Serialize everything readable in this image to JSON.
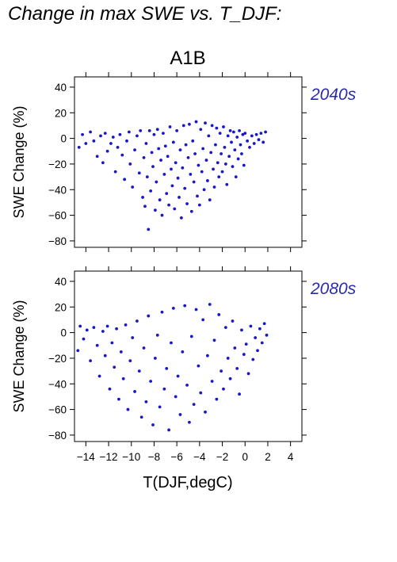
{
  "title": "Change in max SWE vs. T_DJF:",
  "colors": {
    "points": "#1818c8",
    "period_label": "#2a2ab0"
  },
  "chart_data": [
    {
      "type": "scatter",
      "title": "A1B",
      "period_label": "2040s",
      "ylabel": "SWE Change (%)",
      "xlabel": "",
      "xlim": [
        -15,
        5
      ],
      "ylim": [
        -85,
        48
      ],
      "xticks": [
        -14,
        -12,
        -10,
        -8,
        -6,
        -4,
        -2,
        0,
        2,
        4
      ],
      "yticks": [
        40,
        20,
        0,
        -20,
        -40,
        -60,
        -80
      ],
      "series": [
        {
          "values": [
            [
              -14.6,
              -7
            ],
            [
              -14.3,
              3
            ],
            [
              -14.0,
              -4
            ],
            [
              -13.6,
              5
            ],
            [
              -13.3,
              -2
            ],
            [
              -13.0,
              -14
            ],
            [
              -12.7,
              2
            ],
            [
              -12.5,
              -19
            ],
            [
              -12.3,
              4
            ],
            [
              -12.1,
              -10
            ],
            [
              -11.8,
              -4
            ],
            [
              -11.6,
              1
            ],
            [
              -11.4,
              -26
            ],
            [
              -11.2,
              -7
            ],
            [
              -11.0,
              3
            ],
            [
              -10.8,
              -13
            ],
            [
              -10.6,
              -32
            ],
            [
              -10.4,
              -2
            ],
            [
              -10.2,
              5
            ],
            [
              -10.1,
              -20
            ],
            [
              -9.9,
              -38
            ],
            [
              -9.7,
              -9
            ],
            [
              -9.5,
              2
            ],
            [
              -9.3,
              -27
            ],
            [
              -9.2,
              6
            ],
            [
              -9.0,
              -46
            ],
            [
              -8.9,
              -15
            ],
            [
              -8.8,
              -53
            ],
            [
              -8.7,
              -4
            ],
            [
              -8.6,
              -30
            ],
            [
              -8.5,
              -71
            ],
            [
              -8.4,
              6
            ],
            [
              -8.3,
              -41
            ],
            [
              -8.2,
              -11
            ],
            [
              -8.1,
              -22
            ],
            [
              -8.0,
              3
            ],
            [
              -7.9,
              -56
            ],
            [
              -7.8,
              -34
            ],
            [
              -7.7,
              7
            ],
            [
              -7.6,
              -8
            ],
            [
              -7.5,
              -48
            ],
            [
              -7.4,
              -17
            ],
            [
              -7.3,
              -60
            ],
            [
              -7.2,
              4
            ],
            [
              -7.1,
              -28
            ],
            [
              -7.0,
              -6
            ],
            [
              -6.9,
              -43
            ],
            [
              -6.8,
              -14
            ],
            [
              -6.7,
              -52
            ],
            [
              -6.6,
              9
            ],
            [
              -6.5,
              -24
            ],
            [
              -6.4,
              -37
            ],
            [
              -6.3,
              -3
            ],
            [
              -6.2,
              -55
            ],
            [
              -6.1,
              -19
            ],
            [
              -6.0,
              6
            ],
            [
              -5.9,
              -31
            ],
            [
              -5.8,
              -46
            ],
            [
              -5.7,
              -9
            ],
            [
              -5.6,
              -62
            ],
            [
              -5.5,
              -23
            ],
            [
              -5.4,
              10
            ],
            [
              -5.3,
              -39
            ],
            [
              -5.2,
              -5
            ],
            [
              -5.1,
              -51
            ],
            [
              -5.0,
              -15
            ],
            [
              -4.9,
              11
            ],
            [
              -4.8,
              -28
            ],
            [
              -4.7,
              -57
            ],
            [
              -4.6,
              -2
            ],
            [
              -4.5,
              -34
            ],
            [
              -4.4,
              -12
            ],
            [
              -4.3,
              13
            ],
            [
              -4.2,
              -45
            ],
            [
              -4.1,
              -21
            ],
            [
              -4.0,
              -52
            ],
            [
              -3.9,
              7
            ],
            [
              -3.8,
              -26
            ],
            [
              -3.7,
              -8
            ],
            [
              -3.6,
              -40
            ],
            [
              -3.5,
              12
            ],
            [
              -3.4,
              -17
            ],
            [
              -3.3,
              -33
            ],
            [
              -3.2,
              2
            ],
            [
              -3.1,
              -48
            ],
            [
              -3.0,
              -11
            ],
            [
              -2.9,
              10
            ],
            [
              -2.8,
              -24
            ],
            [
              -2.7,
              -38
            ],
            [
              -2.6,
              -5
            ],
            [
              -2.5,
              8
            ],
            [
              -2.4,
              -19
            ],
            [
              -2.3,
              -30
            ],
            [
              -2.2,
              4
            ],
            [
              -2.1,
              -12
            ],
            [
              -2.0,
              -26
            ],
            [
              -1.9,
              9
            ],
            [
              -1.8,
              -7
            ],
            [
              -1.7,
              -20
            ],
            [
              -1.6,
              -36
            ],
            [
              -1.5,
              2
            ],
            [
              -1.4,
              -14
            ],
            [
              -1.3,
              6
            ],
            [
              -1.2,
              -3
            ],
            [
              -1.1,
              -22
            ],
            [
              -1.0,
              5
            ],
            [
              -0.9,
              -9
            ],
            [
              -0.8,
              -30
            ],
            [
              -0.7,
              1
            ],
            [
              -0.6,
              -16
            ],
            [
              -0.5,
              6
            ],
            [
              -0.4,
              -5
            ],
            [
              -0.3,
              -12
            ],
            [
              -0.2,
              3
            ],
            [
              -0.1,
              -21
            ],
            [
              0.0,
              4
            ],
            [
              0.2,
              -2
            ],
            [
              0.4,
              -7
            ],
            [
              0.6,
              2
            ],
            [
              0.8,
              -4
            ],
            [
              1.0,
              3
            ],
            [
              1.2,
              -1
            ],
            [
              1.4,
              4
            ],
            [
              1.6,
              -3
            ],
            [
              1.8,
              5
            ]
          ]
        }
      ]
    },
    {
      "type": "scatter",
      "title": "",
      "period_label": "2080s",
      "ylabel": "SWE Change (%)",
      "xlabel": "T(DJF,degC)",
      "xlim": [
        -15,
        5
      ],
      "ylim": [
        -85,
        48
      ],
      "xticks": [
        -14,
        -12,
        -10,
        -8,
        -6,
        -4,
        -2,
        0,
        2,
        4
      ],
      "xticklabels": [
        "−14",
        "−12",
        "−10",
        "−8",
        "−6",
        "−4",
        "−2",
        "0",
        "2",
        "4"
      ],
      "yticks": [
        40,
        20,
        0,
        -20,
        -40,
        -60,
        -80
      ],
      "series": [
        {
          "values": [
            [
              -14.7,
              -14
            ],
            [
              -14.5,
              5
            ],
            [
              -14.2,
              -5
            ],
            [
              -13.9,
              2
            ],
            [
              -13.6,
              -22
            ],
            [
              -13.3,
              4
            ],
            [
              -13.0,
              -10
            ],
            [
              -12.8,
              -34
            ],
            [
              -12.5,
              1
            ],
            [
              -12.3,
              -18
            ],
            [
              -12.1,
              5
            ],
            [
              -11.9,
              -44
            ],
            [
              -11.7,
              -8
            ],
            [
              -11.5,
              -27
            ],
            [
              -11.3,
              3
            ],
            [
              -11.1,
              -52
            ],
            [
              -10.9,
              -15
            ],
            [
              -10.7,
              -36
            ],
            [
              -10.5,
              6
            ],
            [
              -10.3,
              -60
            ],
            [
              -10.1,
              -22
            ],
            [
              -9.9,
              -4
            ],
            [
              -9.7,
              -46
            ],
            [
              -9.5,
              9
            ],
            [
              -9.3,
              -30
            ],
            [
              -9.1,
              -66
            ],
            [
              -8.9,
              -12
            ],
            [
              -8.7,
              -54
            ],
            [
              -8.5,
              13
            ],
            [
              -8.3,
              -38
            ],
            [
              -8.1,
              -72
            ],
            [
              -7.9,
              -20
            ],
            [
              -7.7,
              -2
            ],
            [
              -7.5,
              -58
            ],
            [
              -7.3,
              16
            ],
            [
              -7.1,
              -44
            ],
            [
              -6.9,
              -28
            ],
            [
              -6.7,
              -76
            ],
            [
              -6.5,
              -8
            ],
            [
              -6.3,
              19
            ],
            [
              -6.1,
              -50
            ],
            [
              -5.9,
              -34
            ],
            [
              -5.7,
              -64
            ],
            [
              -5.5,
              -15
            ],
            [
              -5.3,
              21
            ],
            [
              -5.1,
              -41
            ],
            [
              -4.9,
              -70
            ],
            [
              -4.7,
              -3
            ],
            [
              -4.5,
              -56
            ],
            [
              -4.3,
              18
            ],
            [
              -4.1,
              -26
            ],
            [
              -3.9,
              -47
            ],
            [
              -3.7,
              10
            ],
            [
              -3.5,
              -62
            ],
            [
              -3.3,
              -18
            ],
            [
              -3.1,
              22
            ],
            [
              -2.9,
              -38
            ],
            [
              -2.7,
              -6
            ],
            [
              -2.5,
              -52
            ],
            [
              -2.3,
              14
            ],
            [
              -2.1,
              -30
            ],
            [
              -1.9,
              -44
            ],
            [
              -1.7,
              4
            ],
            [
              -1.5,
              -20
            ],
            [
              -1.3,
              -36
            ],
            [
              -1.1,
              9
            ],
            [
              -0.9,
              -12
            ],
            [
              -0.7,
              -28
            ],
            [
              -0.5,
              -48
            ],
            [
              -0.3,
              2
            ],
            [
              -0.1,
              -17
            ],
            [
              0.1,
              -9
            ],
            [
              0.3,
              -32
            ],
            [
              0.5,
              5
            ],
            [
              0.7,
              -21
            ],
            [
              0.9,
              -4
            ],
            [
              1.1,
              -14
            ],
            [
              1.3,
              3
            ],
            [
              1.5,
              -8
            ],
            [
              1.7,
              7
            ],
            [
              1.9,
              -2
            ]
          ]
        }
      ]
    }
  ]
}
